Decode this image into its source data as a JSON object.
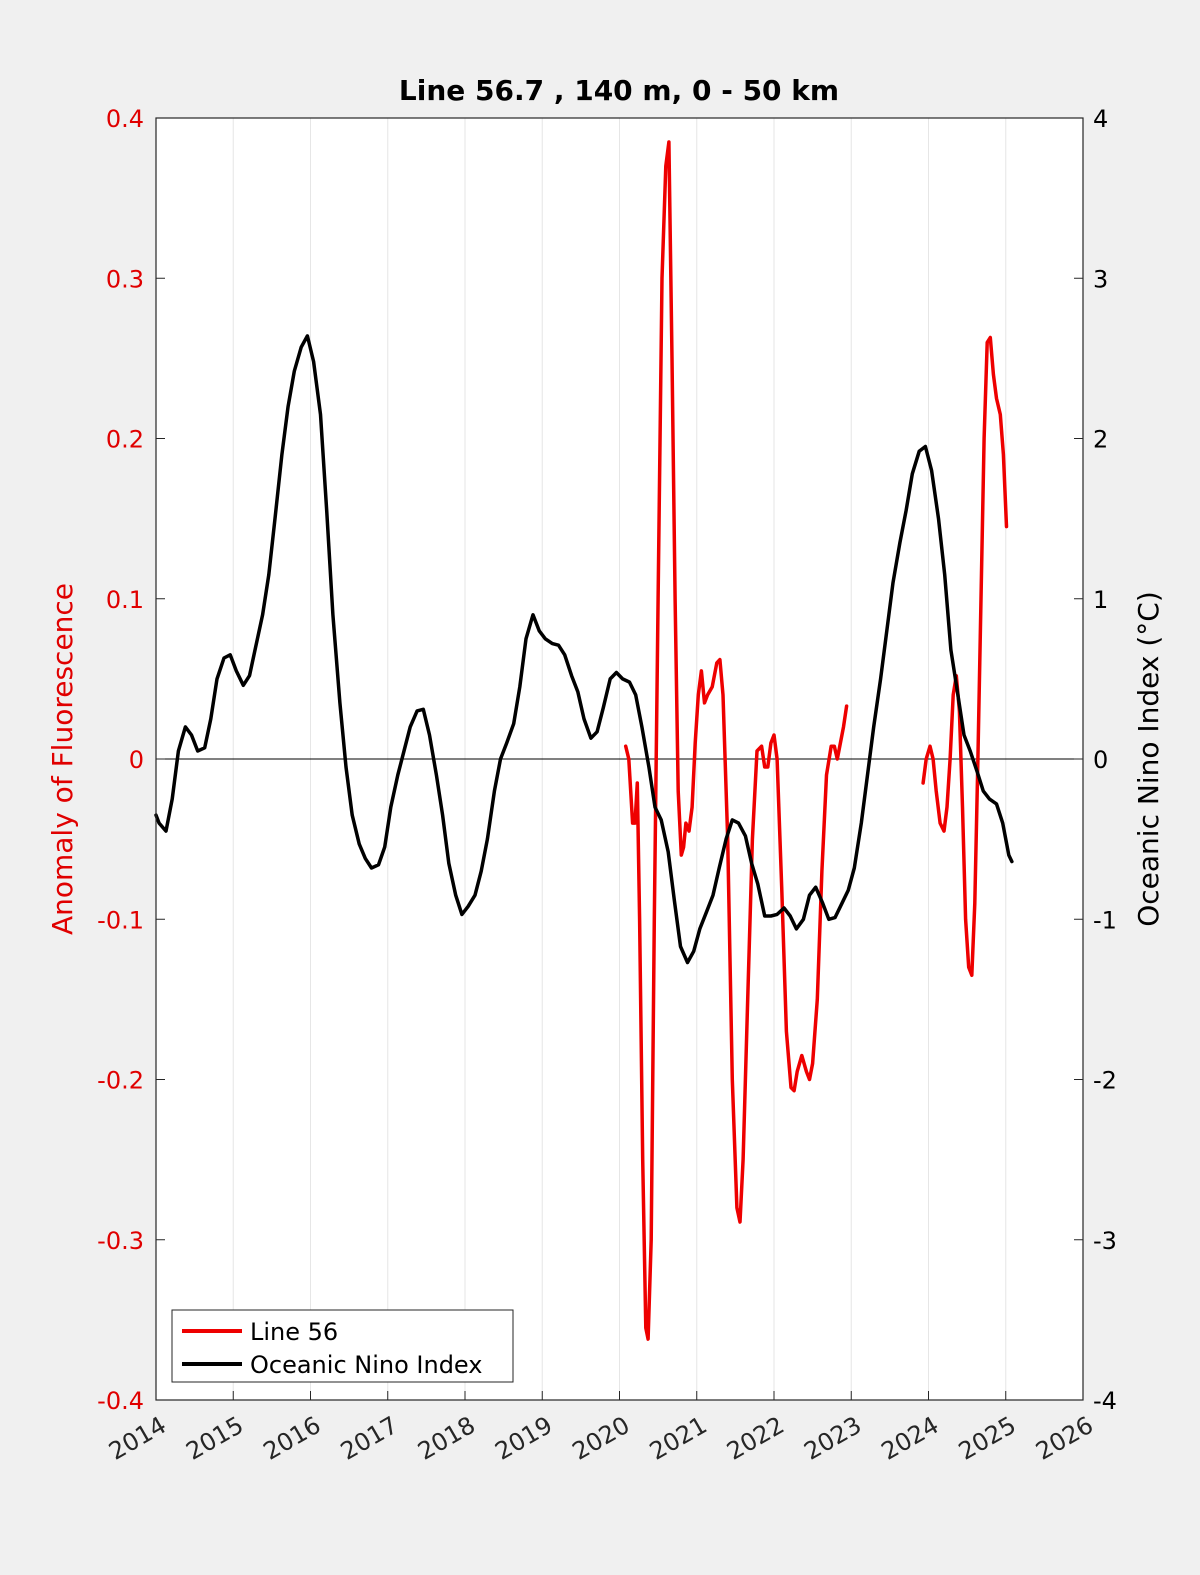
{
  "chart_data": {
    "type": "line",
    "title": "Line 56.7 , 140 m, 0 - 50 km",
    "xlabel": "",
    "ylabel_left": "Anomaly of Fluorescence",
    "ylabel_right": "Oceanic Nino Index (°C)",
    "xlim": [
      2014,
      2026
    ],
    "ylim_left": [
      -0.4,
      0.4
    ],
    "ylim_right": [
      -4,
      4
    ],
    "x_ticks": [
      "2014",
      "2015",
      "2016",
      "2017",
      "2018",
      "2019",
      "2020",
      "2021",
      "2022",
      "2023",
      "2024",
      "2025",
      "2026"
    ],
    "y_ticks_left": [
      "-0.4",
      "-0.3",
      "-0.2",
      "-0.1",
      "0",
      "0.1",
      "0.2",
      "0.3",
      "0.4"
    ],
    "y_ticks_right": [
      "-4",
      "-3",
      "-2",
      "-1",
      "0",
      "1",
      "2",
      "3",
      "4"
    ],
    "grid": "vertical",
    "legend_position": "bottom-left",
    "colors": {
      "left_axis": "#e00000",
      "series_line56": "#ee0000",
      "series_oni": "#000000",
      "plot_bg": "#ffffff",
      "figure_bg": "#f0f0f0"
    },
    "series": [
      {
        "name": "Line 56",
        "axis": "left",
        "color": "#ee0000",
        "segments": [
          [
            [
              2020.08,
              0.008
            ],
            [
              2020.12,
              0.0
            ],
            [
              2020.17,
              -0.04
            ],
            [
              2020.2,
              -0.04
            ],
            [
              2020.23,
              -0.015
            ],
            [
              2020.26,
              -0.1
            ],
            [
              2020.3,
              -0.25
            ],
            [
              2020.34,
              -0.355
            ],
            [
              2020.37,
              -0.362
            ],
            [
              2020.41,
              -0.3
            ],
            [
              2020.45,
              -0.1
            ],
            [
              2020.5,
              0.1
            ],
            [
              2020.55,
              0.3
            ],
            [
              2020.6,
              0.37
            ],
            [
              2020.64,
              0.385
            ],
            [
              2020.68,
              0.25
            ],
            [
              2020.72,
              0.1
            ],
            [
              2020.76,
              -0.02
            ],
            [
              2020.8,
              -0.06
            ],
            [
              2020.83,
              -0.055
            ],
            [
              2020.86,
              -0.04
            ],
            [
              2020.9,
              -0.045
            ],
            [
              2020.94,
              -0.03
            ],
            [
              2020.98,
              0.01
            ],
            [
              2021.02,
              0.04
            ],
            [
              2021.06,
              0.055
            ],
            [
              2021.1,
              0.035
            ],
            [
              2021.14,
              0.04
            ],
            [
              2021.2,
              0.045
            ],
            [
              2021.26,
              0.06
            ],
            [
              2021.3,
              0.062
            ],
            [
              2021.34,
              0.04
            ],
            [
              2021.4,
              -0.05
            ],
            [
              2021.46,
              -0.2
            ],
            [
              2021.52,
              -0.28
            ],
            [
              2021.56,
              -0.289
            ],
            [
              2021.6,
              -0.25
            ],
            [
              2021.66,
              -0.15
            ],
            [
              2021.72,
              -0.05
            ],
            [
              2021.78,
              0.005
            ],
            [
              2021.84,
              0.008
            ],
            [
              2021.88,
              -0.005
            ],
            [
              2021.92,
              -0.005
            ],
            [
              2021.96,
              0.01
            ],
            [
              2022.0,
              0.015
            ],
            [
              2022.04,
              0.0
            ],
            [
              2022.1,
              -0.08
            ],
            [
              2022.16,
              -0.17
            ],
            [
              2022.22,
              -0.205
            ],
            [
              2022.26,
              -0.207
            ],
            [
              2022.3,
              -0.195
            ],
            [
              2022.36,
              -0.185
            ],
            [
              2022.42,
              -0.195
            ],
            [
              2022.46,
              -0.2
            ],
            [
              2022.5,
              -0.19
            ],
            [
              2022.56,
              -0.15
            ],
            [
              2022.62,
              -0.07
            ],
            [
              2022.68,
              -0.01
            ],
            [
              2022.74,
              0.008
            ],
            [
              2022.78,
              0.008
            ],
            [
              2022.82,
              0.0
            ],
            [
              2022.86,
              0.01
            ],
            [
              2022.9,
              0.02
            ],
            [
              2022.94,
              0.033
            ]
          ],
          [
            [
              2023.93,
              -0.015
            ],
            [
              2023.97,
              0.0
            ],
            [
              2024.02,
              0.008
            ],
            [
              2024.06,
              0.0
            ],
            [
              2024.1,
              -0.02
            ],
            [
              2024.15,
              -0.04
            ],
            [
              2024.2,
              -0.045
            ],
            [
              2024.24,
              -0.03
            ],
            [
              2024.28,
              0.0
            ],
            [
              2024.32,
              0.04
            ],
            [
              2024.36,
              0.052
            ],
            [
              2024.4,
              0.03
            ],
            [
              2024.44,
              -0.03
            ],
            [
              2024.48,
              -0.1
            ],
            [
              2024.52,
              -0.13
            ],
            [
              2024.56,
              -0.135
            ],
            [
              2024.6,
              -0.09
            ],
            [
              2024.64,
              0.0
            ],
            [
              2024.68,
              0.1
            ],
            [
              2024.72,
              0.2
            ],
            [
              2024.76,
              0.26
            ],
            [
              2024.8,
              0.263
            ],
            [
              2024.84,
              0.24
            ],
            [
              2024.88,
              0.225
            ],
            [
              2024.93,
              0.215
            ],
            [
              2024.97,
              0.19
            ],
            [
              2025.01,
              0.145
            ]
          ]
        ]
      },
      {
        "name": "Oceanic Nino Index",
        "axis": "right",
        "color": "#000000",
        "points": [
          [
            2014.0,
            -0.35
          ],
          [
            2014.04,
            -0.4
          ],
          [
            2014.13,
            -0.45
          ],
          [
            2014.21,
            -0.25
          ],
          [
            2014.29,
            0.05
          ],
          [
            2014.38,
            0.2
          ],
          [
            2014.46,
            0.15
          ],
          [
            2014.54,
            0.05
          ],
          [
            2014.63,
            0.07
          ],
          [
            2014.71,
            0.25
          ],
          [
            2014.79,
            0.5
          ],
          [
            2014.88,
            0.63
          ],
          [
            2014.96,
            0.65
          ],
          [
            2015.04,
            0.55
          ],
          [
            2015.13,
            0.46
          ],
          [
            2015.21,
            0.52
          ],
          [
            2015.29,
            0.7
          ],
          [
            2015.38,
            0.9
          ],
          [
            2015.46,
            1.15
          ],
          [
            2015.54,
            1.5
          ],
          [
            2015.63,
            1.9
          ],
          [
            2015.71,
            2.2
          ],
          [
            2015.79,
            2.42
          ],
          [
            2015.88,
            2.57
          ],
          [
            2015.96,
            2.64
          ],
          [
            2016.04,
            2.48
          ],
          [
            2016.13,
            2.15
          ],
          [
            2016.21,
            1.55
          ],
          [
            2016.29,
            0.9
          ],
          [
            2016.38,
            0.35
          ],
          [
            2016.46,
            -0.05
          ],
          [
            2016.54,
            -0.35
          ],
          [
            2016.63,
            -0.53
          ],
          [
            2016.71,
            -0.62
          ],
          [
            2016.79,
            -0.68
          ],
          [
            2016.88,
            -0.66
          ],
          [
            2016.96,
            -0.55
          ],
          [
            2017.04,
            -0.3
          ],
          [
            2017.13,
            -0.1
          ],
          [
            2017.21,
            0.05
          ],
          [
            2017.29,
            0.2
          ],
          [
            2017.38,
            0.3
          ],
          [
            2017.46,
            0.31
          ],
          [
            2017.54,
            0.15
          ],
          [
            2017.63,
            -0.1
          ],
          [
            2017.71,
            -0.35
          ],
          [
            2017.79,
            -0.65
          ],
          [
            2017.88,
            -0.85
          ],
          [
            2017.96,
            -0.97
          ],
          [
            2018.04,
            -0.92
          ],
          [
            2018.13,
            -0.85
          ],
          [
            2018.21,
            -0.7
          ],
          [
            2018.29,
            -0.5
          ],
          [
            2018.38,
            -0.2
          ],
          [
            2018.46,
            0.0
          ],
          [
            2018.54,
            0.1
          ],
          [
            2018.63,
            0.22
          ],
          [
            2018.71,
            0.45
          ],
          [
            2018.79,
            0.75
          ],
          [
            2018.88,
            0.9
          ],
          [
            2018.96,
            0.8
          ],
          [
            2019.04,
            0.75
          ],
          [
            2019.13,
            0.72
          ],
          [
            2019.21,
            0.71
          ],
          [
            2019.29,
            0.65
          ],
          [
            2019.38,
            0.52
          ],
          [
            2019.46,
            0.42
          ],
          [
            2019.54,
            0.25
          ],
          [
            2019.63,
            0.13
          ],
          [
            2019.71,
            0.17
          ],
          [
            2019.79,
            0.32
          ],
          [
            2019.88,
            0.5
          ],
          [
            2019.96,
            0.54
          ],
          [
            2020.04,
            0.5
          ],
          [
            2020.13,
            0.48
          ],
          [
            2020.21,
            0.4
          ],
          [
            2020.29,
            0.2
          ],
          [
            2020.38,
            -0.05
          ],
          [
            2020.46,
            -0.3
          ],
          [
            2020.54,
            -0.38
          ],
          [
            2020.63,
            -0.58
          ],
          [
            2020.71,
            -0.88
          ],
          [
            2020.79,
            -1.17
          ],
          [
            2020.88,
            -1.27
          ],
          [
            2020.96,
            -1.2
          ],
          [
            2021.04,
            -1.06
          ],
          [
            2021.13,
            -0.95
          ],
          [
            2021.21,
            -0.85
          ],
          [
            2021.29,
            -0.68
          ],
          [
            2021.38,
            -0.5
          ],
          [
            2021.46,
            -0.38
          ],
          [
            2021.54,
            -0.4
          ],
          [
            2021.63,
            -0.48
          ],
          [
            2021.71,
            -0.65
          ],
          [
            2021.79,
            -0.78
          ],
          [
            2021.88,
            -0.98
          ],
          [
            2021.96,
            -0.98
          ],
          [
            2022.04,
            -0.97
          ],
          [
            2022.13,
            -0.93
          ],
          [
            2022.21,
            -0.98
          ],
          [
            2022.29,
            -1.06
          ],
          [
            2022.38,
            -1.0
          ],
          [
            2022.46,
            -0.85
          ],
          [
            2022.54,
            -0.8
          ],
          [
            2022.63,
            -0.9
          ],
          [
            2022.71,
            -1.0
          ],
          [
            2022.79,
            -0.99
          ],
          [
            2022.88,
            -0.9
          ],
          [
            2022.96,
            -0.82
          ],
          [
            2023.04,
            -0.68
          ],
          [
            2023.13,
            -0.4
          ],
          [
            2023.21,
            -0.1
          ],
          [
            2023.29,
            0.2
          ],
          [
            2023.38,
            0.5
          ],
          [
            2023.46,
            0.8
          ],
          [
            2023.54,
            1.1
          ],
          [
            2023.63,
            1.35
          ],
          [
            2023.71,
            1.55
          ],
          [
            2023.79,
            1.78
          ],
          [
            2023.88,
            1.92
          ],
          [
            2023.96,
            1.95
          ],
          [
            2024.04,
            1.8
          ],
          [
            2024.13,
            1.5
          ],
          [
            2024.21,
            1.15
          ],
          [
            2024.29,
            0.68
          ],
          [
            2024.38,
            0.4
          ],
          [
            2024.46,
            0.15
          ],
          [
            2024.54,
            0.05
          ],
          [
            2024.63,
            -0.08
          ],
          [
            2024.71,
            -0.2
          ],
          [
            2024.79,
            -0.25
          ],
          [
            2024.88,
            -0.28
          ],
          [
            2024.96,
            -0.4
          ],
          [
            2025.04,
            -0.6
          ],
          [
            2025.08,
            -0.64
          ]
        ]
      }
    ]
  }
}
